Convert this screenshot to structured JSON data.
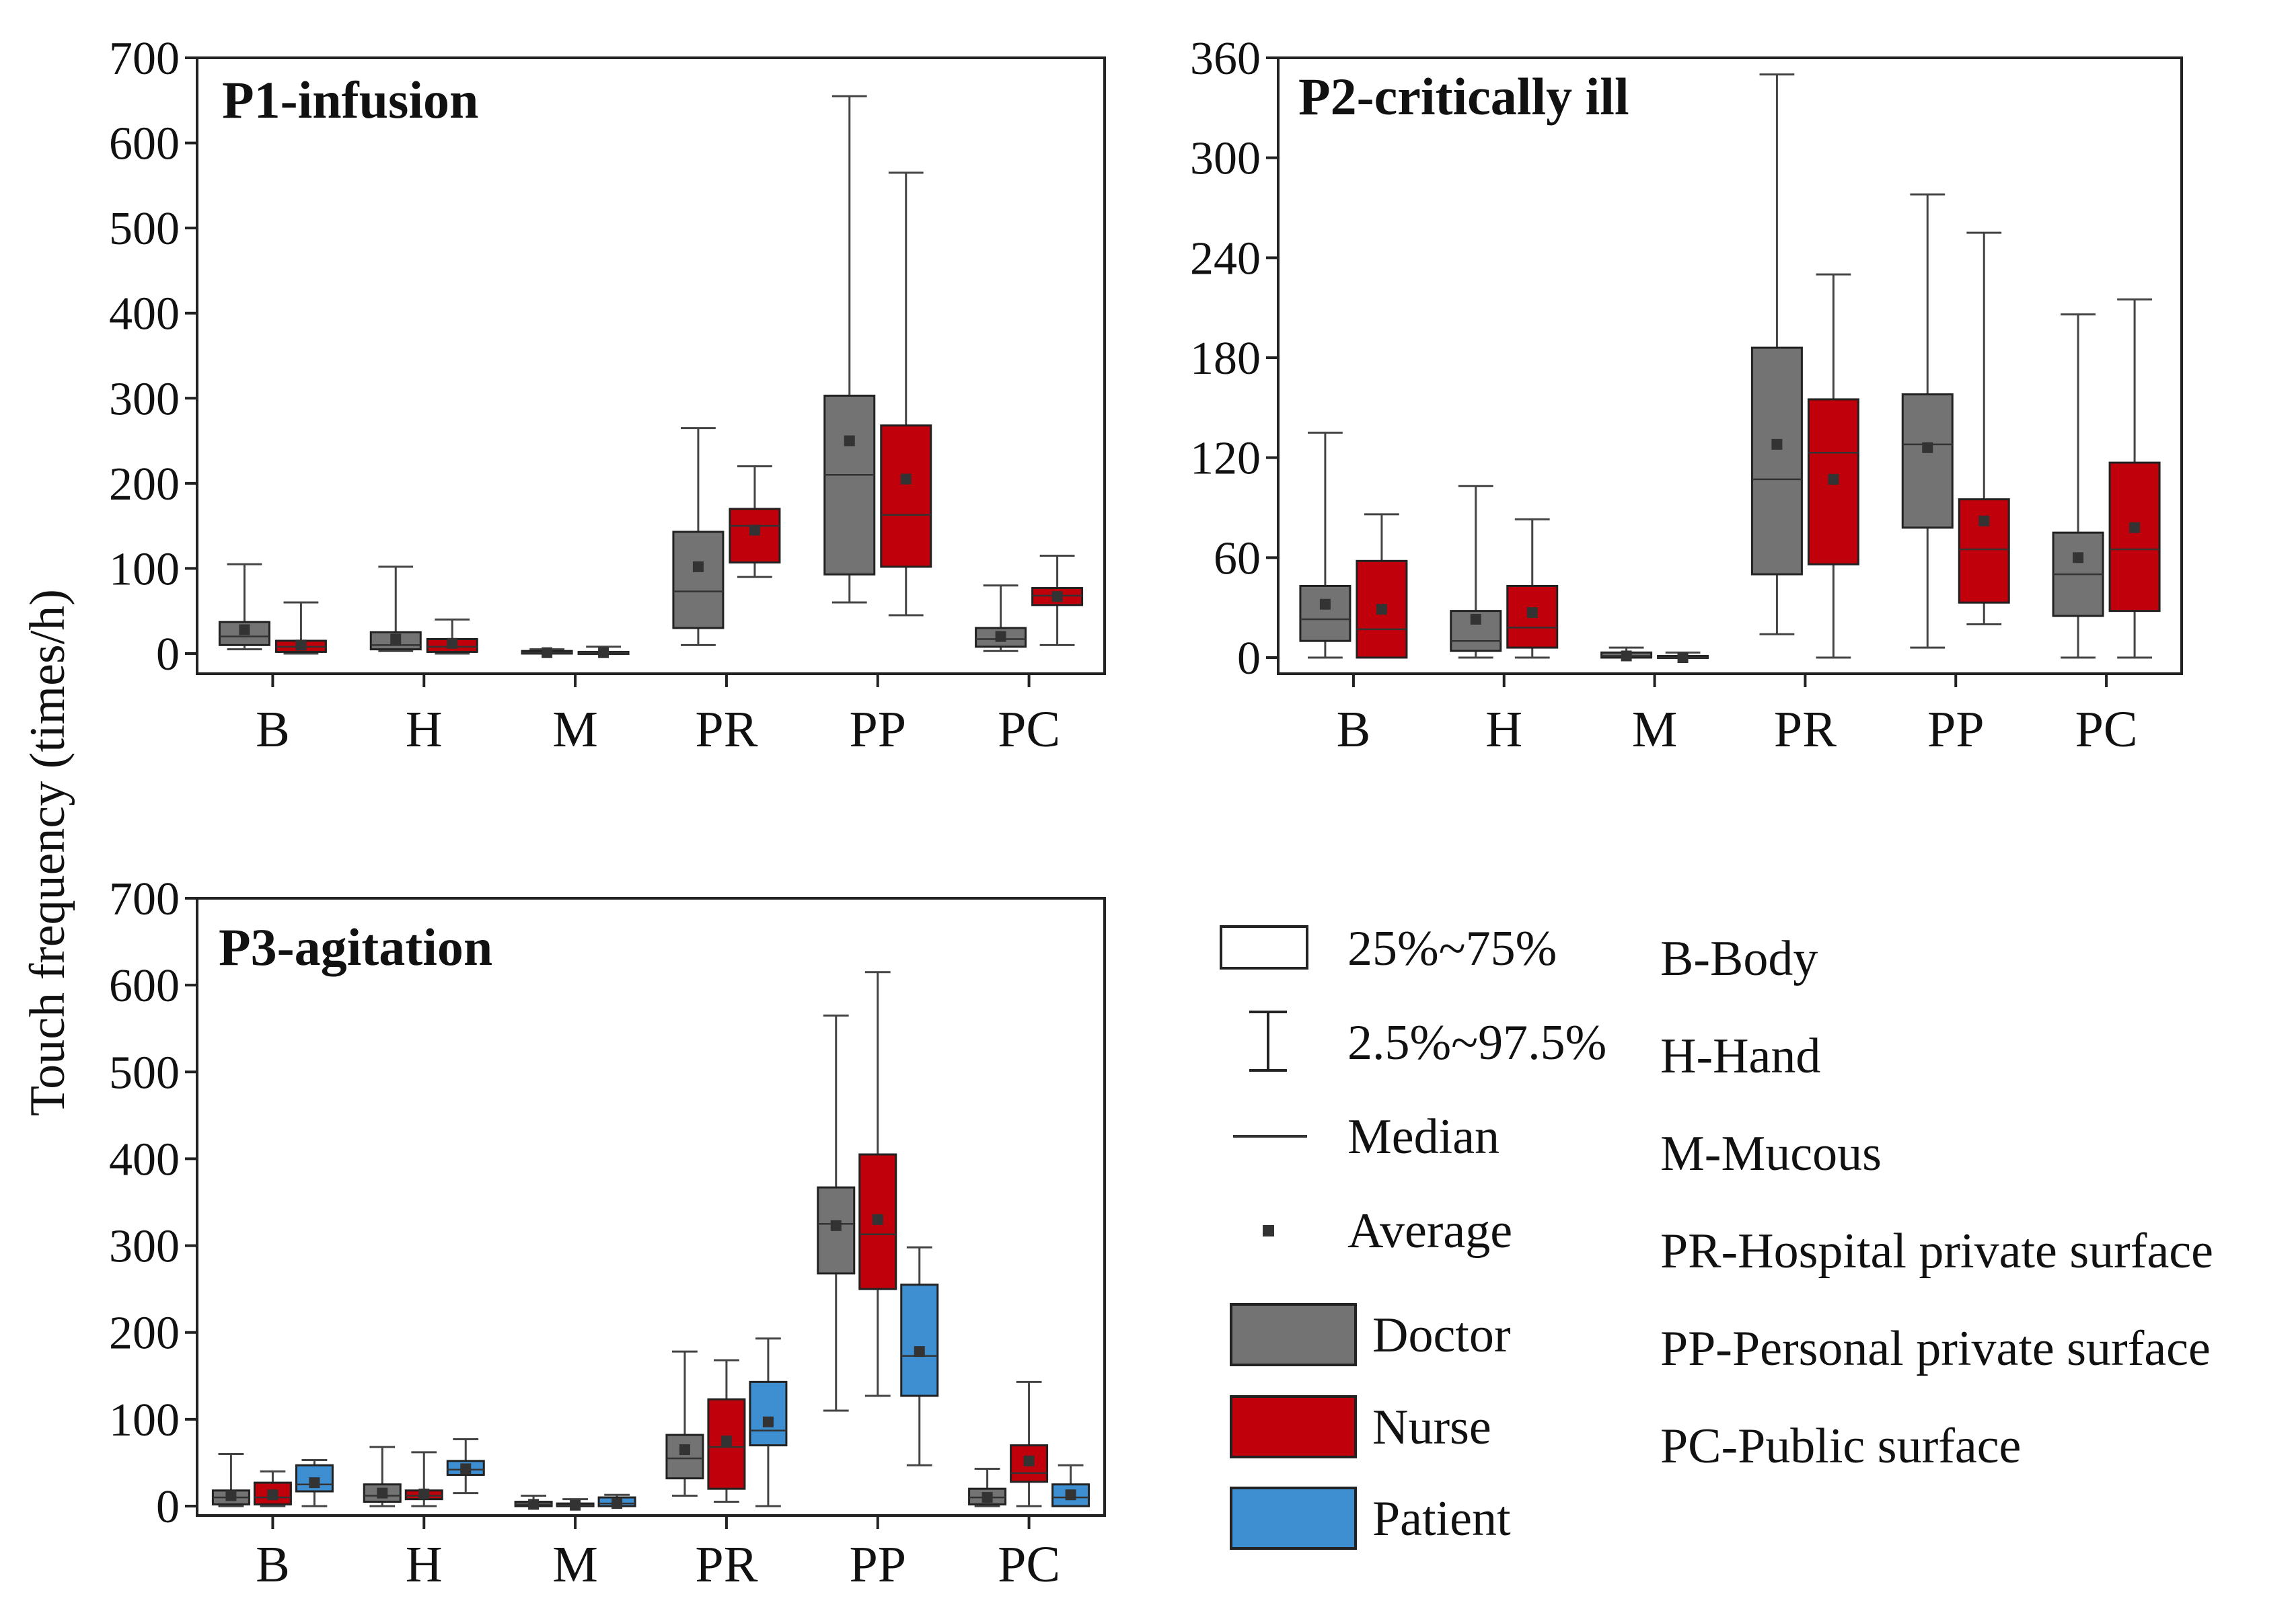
{
  "chart_data": {
    "type": "boxplot",
    "ylabel": "Touch frequency (times/h)",
    "colors": {
      "Doctor": "#737373",
      "Nurse": "#c0000a",
      "Patient": "#3d8fd1"
    },
    "categories": [
      "B",
      "H",
      "M",
      "PR",
      "PP",
      "PC"
    ],
    "panels": [
      {
        "title": "P1-infusion",
        "ylim": [
          0,
          700
        ],
        "yticks": [
          "0",
          "100",
          "200",
          "300",
          "400",
          "500",
          "600",
          "700"
        ],
        "yticks_values": [
          0,
          100,
          200,
          300,
          400,
          500,
          600,
          700
        ],
        "series": [
          {
            "name": "Doctor",
            "boxes": [
              {
                "lo": 5,
                "q1": 10,
                "med": 20,
                "q3": 37,
                "hi": 105,
                "mean": 28
              },
              {
                "lo": 3,
                "q1": 5,
                "med": 10,
                "q3": 25,
                "hi": 102,
                "mean": 17
              },
              {
                "lo": 0,
                "q1": 0,
                "med": 1,
                "q3": 3,
                "hi": 5,
                "mean": 1
              },
              {
                "lo": 10,
                "q1": 30,
                "med": 73,
                "q3": 143,
                "hi": 265,
                "mean": 102
              },
              {
                "lo": 60,
                "q1": 93,
                "med": 210,
                "q3": 303,
                "hi": 655,
                "mean": 250
              },
              {
                "lo": 3,
                "q1": 8,
                "med": 17,
                "q3": 30,
                "hi": 80,
                "mean": 20
              }
            ]
          },
          {
            "name": "Nurse",
            "boxes": [
              {
                "lo": 0,
                "q1": 2,
                "med": 8,
                "q3": 15,
                "hi": 60,
                "mean": 10
              },
              {
                "lo": 0,
                "q1": 2,
                "med": 8,
                "q3": 17,
                "hi": 40,
                "mean": 12
              },
              {
                "lo": 0,
                "q1": 0,
                "med": 1,
                "q3": 2,
                "hi": 8,
                "mean": 1
              },
              {
                "lo": 90,
                "q1": 107,
                "med": 150,
                "q3": 170,
                "hi": 220,
                "mean": 145
              },
              {
                "lo": 45,
                "q1": 102,
                "med": 163,
                "q3": 268,
                "hi": 565,
                "mean": 205
              },
              {
                "lo": 10,
                "q1": 57,
                "med": 68,
                "q3": 77,
                "hi": 115,
                "mean": 67
              }
            ]
          }
        ]
      },
      {
        "title": "P2-critically ill",
        "ylim": [
          0,
          360
        ],
        "yticks": [
          "0",
          "60",
          "120",
          "180",
          "240",
          "300",
          "360"
        ],
        "yticks_values": [
          0,
          60,
          120,
          180,
          240,
          300,
          360
        ],
        "series": [
          {
            "name": "Doctor",
            "boxes": [
              {
                "lo": 0,
                "q1": 10,
                "med": 23,
                "q3": 43,
                "hi": 135,
                "mean": 32
              },
              {
                "lo": 0,
                "q1": 4,
                "med": 10,
                "q3": 28,
                "hi": 103,
                "mean": 23
              },
              {
                "lo": 0,
                "q1": 0,
                "med": 1,
                "q3": 3,
                "hi": 6,
                "mean": 1
              },
              {
                "lo": 14,
                "q1": 50,
                "med": 107,
                "q3": 186,
                "hi": 350,
                "mean": 128
              },
              {
                "lo": 6,
                "q1": 78,
                "med": 128,
                "q3": 158,
                "hi": 278,
                "mean": 126
              },
              {
                "lo": 0,
                "q1": 25,
                "med": 50,
                "q3": 75,
                "hi": 206,
                "mean": 60
              }
            ]
          },
          {
            "name": "Nurse",
            "boxes": [
              {
                "lo": 0,
                "q1": 0,
                "med": 17,
                "q3": 58,
                "hi": 86,
                "mean": 29
              },
              {
                "lo": 0,
                "q1": 6,
                "med": 18,
                "q3": 43,
                "hi": 83,
                "mean": 27
              },
              {
                "lo": 0,
                "q1": 0,
                "med": 0,
                "q3": 1,
                "hi": 3,
                "mean": 0
              },
              {
                "lo": 0,
                "q1": 56,
                "med": 123,
                "q3": 155,
                "hi": 230,
                "mean": 107
              },
              {
                "lo": 20,
                "q1": 33,
                "med": 65,
                "q3": 95,
                "hi": 255,
                "mean": 82
              },
              {
                "lo": 0,
                "q1": 28,
                "med": 65,
                "q3": 117,
                "hi": 215,
                "mean": 78
              }
            ]
          }
        ]
      },
      {
        "title": "P3-agitation",
        "ylim": [
          0,
          700
        ],
        "yticks": [
          "0",
          "100",
          "200",
          "300",
          "400",
          "500",
          "600",
          "700"
        ],
        "yticks_values": [
          0,
          100,
          200,
          300,
          400,
          500,
          600,
          700
        ],
        "series": [
          {
            "name": "Doctor",
            "boxes": [
              {
                "lo": 0,
                "q1": 2,
                "med": 10,
                "q3": 18,
                "hi": 60,
                "mean": 12
              },
              {
                "lo": 0,
                "q1": 5,
                "med": 12,
                "q3": 25,
                "hi": 68,
                "mean": 15
              },
              {
                "lo": 0,
                "q1": 0,
                "med": 2,
                "q3": 5,
                "hi": 12,
                "mean": 2
              },
              {
                "lo": 12,
                "q1": 32,
                "med": 55,
                "q3": 82,
                "hi": 178,
                "mean": 65
              },
              {
                "lo": 110,
                "q1": 268,
                "med": 325,
                "q3": 367,
                "hi": 565,
                "mean": 323
              },
              {
                "lo": 0,
                "q1": 2,
                "med": 10,
                "q3": 20,
                "hi": 43,
                "mean": 10
              }
            ]
          },
          {
            "name": "Nurse",
            "boxes": [
              {
                "lo": 0,
                "q1": 2,
                "med": 10,
                "q3": 27,
                "hi": 40,
                "mean": 13
              },
              {
                "lo": 0,
                "q1": 8,
                "med": 12,
                "q3": 18,
                "hi": 62,
                "mean": 14
              },
              {
                "lo": 0,
                "q1": 0,
                "med": 1,
                "q3": 3,
                "hi": 8,
                "mean": 1
              },
              {
                "lo": 5,
                "q1": 20,
                "med": 68,
                "q3": 123,
                "hi": 168,
                "mean": 75
              },
              {
                "lo": 127,
                "q1": 250,
                "med": 313,
                "q3": 405,
                "hi": 615,
                "mean": 330
              },
              {
                "lo": 0,
                "q1": 28,
                "med": 38,
                "q3": 70,
                "hi": 143,
                "mean": 52
              }
            ]
          },
          {
            "name": "Patient",
            "boxes": [
              {
                "lo": 0,
                "q1": 17,
                "med": 25,
                "q3": 47,
                "hi": 53,
                "mean": 27
              },
              {
                "lo": 15,
                "q1": 36,
                "med": 42,
                "q3": 52,
                "hi": 77,
                "mean": 43
              },
              {
                "lo": 0,
                "q1": 0,
                "med": 3,
                "q3": 10,
                "hi": 13,
                "mean": 3
              },
              {
                "lo": 0,
                "q1": 70,
                "med": 87,
                "q3": 143,
                "hi": 193,
                "mean": 97
              },
              {
                "lo": 47,
                "q1": 127,
                "med": 173,
                "q3": 255,
                "hi": 298,
                "mean": 178
              },
              {
                "lo": 0,
                "q1": 0,
                "med": 10,
                "q3": 25,
                "hi": 47,
                "mean": 13
              }
            ]
          }
        ]
      }
    ],
    "legend": {
      "symbols": [
        {
          "key": "box",
          "label": "25%~75%"
        },
        {
          "key": "whisker",
          "label": "2.5%~97.5%"
        },
        {
          "key": "median",
          "label": "Median"
        },
        {
          "key": "mean",
          "label": "Average"
        }
      ],
      "groups": [
        {
          "key": "Doctor",
          "label": "Doctor"
        },
        {
          "key": "Nurse",
          "label": "Nurse"
        },
        {
          "key": "Patient",
          "label": "Patient"
        }
      ],
      "abbreviations": [
        "B-Body",
        "H-Hand",
        "M-Mucous",
        "PR-Hospital private surface",
        "PP-Personal private surface",
        "PC-Public surface"
      ]
    }
  }
}
